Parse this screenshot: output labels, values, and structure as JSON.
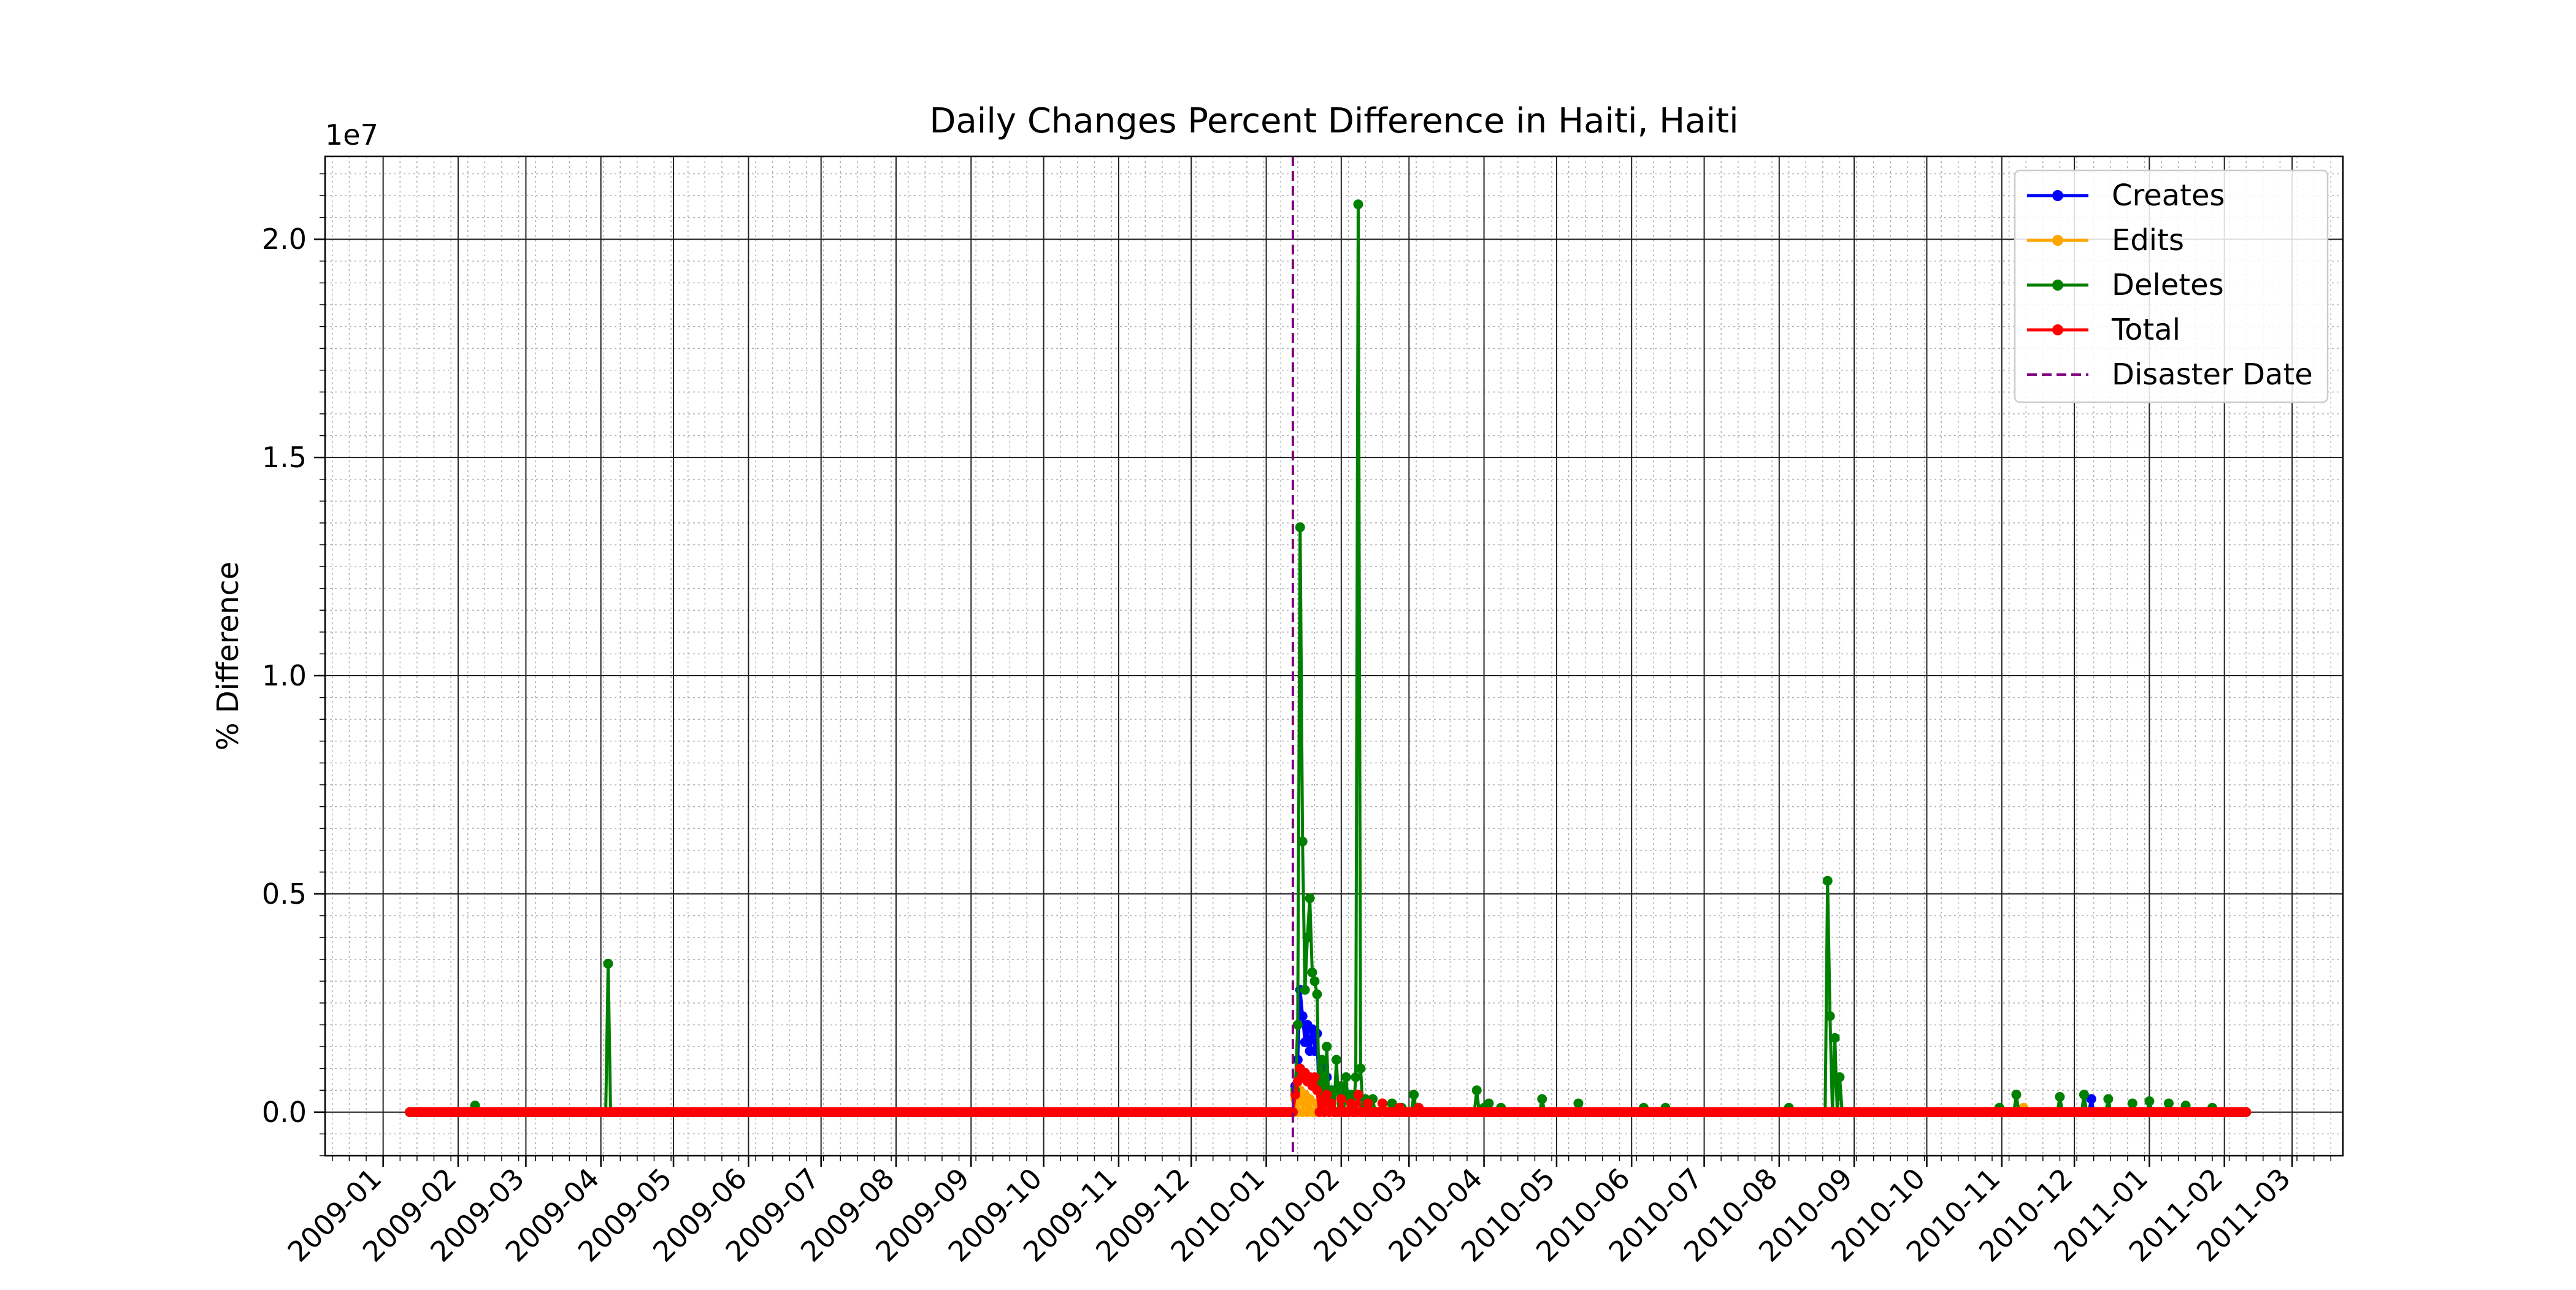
{
  "chart_data": {
    "type": "line",
    "title": "Daily Changes Percent Difference in Haiti, Haiti",
    "xlabel": "",
    "ylabel": "% Difference",
    "y_offset_label": "1e7",
    "x_axis_type": "date",
    "xlim": [
      "2008-12-08",
      "2011-03-22"
    ],
    "ylim": [
      -0.1,
      2.19
    ],
    "y_unit_multiplier": 10000000,
    "x_ticks": [
      "2009-01",
      "2009-02",
      "2009-03",
      "2009-04",
      "2009-05",
      "2009-06",
      "2009-07",
      "2009-08",
      "2009-09",
      "2009-10",
      "2009-11",
      "2009-12",
      "2010-01",
      "2010-02",
      "2010-03",
      "2010-04",
      "2010-05",
      "2010-06",
      "2010-07",
      "2010-08",
      "2010-09",
      "2010-10",
      "2010-11",
      "2010-12",
      "2011-01",
      "2011-02",
      "2011-03"
    ],
    "y_ticks": [
      "0.0",
      "0.5",
      "1.0",
      "1.5",
      "2.0"
    ],
    "grid": true,
    "minor_grid": true,
    "legend_position": "upper right",
    "legend": [
      "Creates",
      "Edits",
      "Deletes",
      "Total",
      "Disaster Date"
    ],
    "disaster_date": "2010-01-12",
    "series": [
      {
        "name": "Creates",
        "color": "#0000ff",
        "points": [
          [
            "2009-01-12",
            0.0
          ],
          [
            "2009-02-01",
            0.0
          ],
          [
            "2009-03-01",
            0.0
          ],
          [
            "2009-04-01",
            0.0
          ],
          [
            "2009-06-01",
            0.0
          ],
          [
            "2009-09-01",
            0.0
          ],
          [
            "2009-12-01",
            0.0
          ],
          [
            "2010-01-12",
            0.0
          ],
          [
            "2010-01-13",
            0.06
          ],
          [
            "2010-01-14",
            0.12
          ],
          [
            "2010-01-15",
            0.28
          ],
          [
            "2010-01-16",
            0.22
          ],
          [
            "2010-01-17",
            0.16
          ],
          [
            "2010-01-18",
            0.2
          ],
          [
            "2010-01-19",
            0.14
          ],
          [
            "2010-01-20",
            0.19
          ],
          [
            "2010-01-21",
            0.14
          ],
          [
            "2010-01-22",
            0.18
          ],
          [
            "2010-01-24",
            0.1
          ],
          [
            "2010-01-26",
            0.08
          ],
          [
            "2010-01-28",
            0.05
          ],
          [
            "2010-02-01",
            0.04
          ],
          [
            "2010-02-05",
            0.03
          ],
          [
            "2010-02-10",
            0.02
          ],
          [
            "2010-02-20",
            0.01
          ],
          [
            "2010-03-01",
            0.0
          ],
          [
            "2010-12-08",
            0.03
          ],
          [
            "2010-12-09",
            0.0
          ],
          [
            "2011-02-10",
            0.0
          ]
        ]
      },
      {
        "name": "Edits",
        "color": "#ffa500",
        "points": [
          [
            "2009-01-12",
            0.0
          ],
          [
            "2009-06-01",
            0.0
          ],
          [
            "2010-01-12",
            0.0
          ],
          [
            "2010-01-13",
            0.03
          ],
          [
            "2010-01-15",
            0.05
          ],
          [
            "2010-01-17",
            0.04
          ],
          [
            "2010-01-19",
            0.03
          ],
          [
            "2010-01-22",
            0.02
          ],
          [
            "2010-01-26",
            0.01
          ],
          [
            "2010-02-01",
            0.01
          ],
          [
            "2010-02-10",
            0.015
          ],
          [
            "2010-02-20",
            0.005
          ],
          [
            "2010-03-01",
            0.0
          ],
          [
            "2010-11-10",
            0.01
          ],
          [
            "2010-11-11",
            0.0
          ],
          [
            "2011-02-10",
            0.0
          ]
        ]
      },
      {
        "name": "Deletes",
        "color": "#008000",
        "points": [
          [
            "2009-01-12",
            0.0
          ],
          [
            "2009-02-07",
            0.0
          ],
          [
            "2009-02-08",
            0.015
          ],
          [
            "2009-02-09",
            0.0
          ],
          [
            "2009-04-03",
            0.0
          ],
          [
            "2009-04-04",
            0.34
          ],
          [
            "2009-04-05",
            0.0
          ],
          [
            "2010-01-12",
            0.0
          ],
          [
            "2010-01-13",
            0.05
          ],
          [
            "2010-01-14",
            0.2
          ],
          [
            "2010-01-15",
            1.34
          ],
          [
            "2010-01-16",
            0.62
          ],
          [
            "2010-01-17",
            0.28
          ],
          [
            "2010-01-18",
            0.4
          ],
          [
            "2010-01-19",
            0.49
          ],
          [
            "2010-01-20",
            0.32
          ],
          [
            "2010-01-21",
            0.3
          ],
          [
            "2010-01-22",
            0.27
          ],
          [
            "2010-01-24",
            0.12
          ],
          [
            "2010-01-26",
            0.15
          ],
          [
            "2010-01-28",
            0.05
          ],
          [
            "2010-01-30",
            0.12
          ],
          [
            "2010-02-01",
            0.06
          ],
          [
            "2010-02-03",
            0.08
          ],
          [
            "2010-02-05",
            0.04
          ],
          [
            "2010-02-07",
            0.08
          ],
          [
            "2010-02-08",
            2.08
          ],
          [
            "2010-02-09",
            0.1
          ],
          [
            "2010-02-11",
            0.03
          ],
          [
            "2010-02-14",
            0.03
          ],
          [
            "2010-02-18",
            0.02
          ],
          [
            "2010-02-22",
            0.02
          ],
          [
            "2010-02-26",
            0.01
          ],
          [
            "2010-03-03",
            0.04
          ],
          [
            "2010-03-05",
            0.01
          ],
          [
            "2010-03-15",
            0.0
          ],
          [
            "2010-03-28",
            0.0
          ],
          [
            "2010-03-29",
            0.05
          ],
          [
            "2010-04-01",
            0.01
          ],
          [
            "2010-04-03",
            0.02
          ],
          [
            "2010-04-08",
            0.01
          ],
          [
            "2010-04-12",
            0.0
          ],
          [
            "2010-04-24",
            0.0
          ],
          [
            "2010-04-25",
            0.03
          ],
          [
            "2010-04-26",
            0.0
          ],
          [
            "2010-05-09",
            0.0
          ],
          [
            "2010-05-10",
            0.02
          ],
          [
            "2010-05-11",
            0.0
          ],
          [
            "2010-06-05",
            0.0
          ],
          [
            "2010-06-06",
            0.01
          ],
          [
            "2010-06-07",
            0.0
          ],
          [
            "2010-06-14",
            0.0
          ],
          [
            "2010-06-15",
            0.01
          ],
          [
            "2010-06-16",
            0.0
          ],
          [
            "2010-08-04",
            0.0
          ],
          [
            "2010-08-05",
            0.01
          ],
          [
            "2010-08-06",
            0.0
          ],
          [
            "2010-08-20",
            0.0
          ],
          [
            "2010-08-21",
            0.53
          ],
          [
            "2010-08-22",
            0.22
          ],
          [
            "2010-08-23",
            0.0
          ],
          [
            "2010-08-24",
            0.17
          ],
          [
            "2010-08-25",
            0.0
          ],
          [
            "2010-08-26",
            0.08
          ],
          [
            "2010-08-27",
            0.0
          ],
          [
            "2010-10-30",
            0.0
          ],
          [
            "2010-10-31",
            0.01
          ],
          [
            "2010-11-01",
            0.0
          ],
          [
            "2010-11-06",
            0.0
          ],
          [
            "2010-11-07",
            0.04
          ],
          [
            "2010-11-08",
            0.0
          ],
          [
            "2010-11-24",
            0.0
          ],
          [
            "2010-11-25",
            0.035
          ],
          [
            "2010-11-26",
            0.0
          ],
          [
            "2010-12-04",
            0.0
          ],
          [
            "2010-12-05",
            0.04
          ],
          [
            "2010-12-06",
            0.0
          ],
          [
            "2010-12-14",
            0.0
          ],
          [
            "2010-12-15",
            0.03
          ],
          [
            "2010-12-16",
            0.0
          ],
          [
            "2010-12-24",
            0.0
          ],
          [
            "2010-12-25",
            0.02
          ],
          [
            "2010-12-26",
            0.0
          ],
          [
            "2010-12-31",
            0.0
          ],
          [
            "2011-01-01",
            0.025
          ],
          [
            "2011-01-02",
            0.0
          ],
          [
            "2011-01-08",
            0.0
          ],
          [
            "2011-01-09",
            0.02
          ],
          [
            "2011-01-10",
            0.0
          ],
          [
            "2011-01-15",
            0.0
          ],
          [
            "2011-01-16",
            0.015
          ],
          [
            "2011-01-17",
            0.0
          ],
          [
            "2011-01-26",
            0.0
          ],
          [
            "2011-01-27",
            0.01
          ],
          [
            "2011-01-28",
            0.0
          ],
          [
            "2011-02-10",
            0.0
          ]
        ]
      },
      {
        "name": "Total",
        "color": "#ff0000",
        "points": [
          [
            "2009-01-12",
            0.0
          ],
          [
            "2009-04-01",
            0.0
          ],
          [
            "2009-09-01",
            0.0
          ],
          [
            "2010-01-12",
            0.0
          ],
          [
            "2010-01-13",
            0.04
          ],
          [
            "2010-01-14",
            0.07
          ],
          [
            "2010-01-15",
            0.1
          ],
          [
            "2010-01-16",
            0.08
          ],
          [
            "2010-01-17",
            0.09
          ],
          [
            "2010-01-18",
            0.07
          ],
          [
            "2010-01-19",
            0.08
          ],
          [
            "2010-01-20",
            0.06
          ],
          [
            "2010-01-21",
            0.08
          ],
          [
            "2010-01-22",
            0.05
          ],
          [
            "2010-01-24",
            0.03
          ],
          [
            "2010-01-26",
            0.04
          ],
          [
            "2010-01-28",
            0.02
          ],
          [
            "2010-02-01",
            0.03
          ],
          [
            "2010-02-05",
            0.02
          ],
          [
            "2010-02-08",
            0.04
          ],
          [
            "2010-02-12",
            0.02
          ],
          [
            "2010-02-18",
            0.02
          ],
          [
            "2010-02-25",
            0.01
          ],
          [
            "2010-03-05",
            0.01
          ],
          [
            "2010-03-15",
            0.0
          ],
          [
            "2010-06-01",
            0.0
          ],
          [
            "2010-09-01",
            0.0
          ],
          [
            "2010-12-01",
            0.0
          ],
          [
            "2011-02-10",
            0.0
          ]
        ]
      }
    ]
  }
}
